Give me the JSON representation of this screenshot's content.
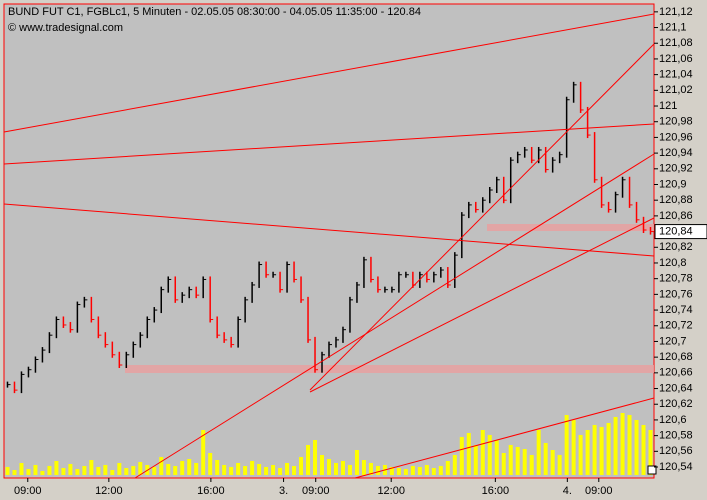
{
  "chart_data": {
    "type": "line",
    "title": "BUND FUT C1, FGBLc1, 5 Minuten - 02.05.05 08:30:00 - 04.05.05 11:35:00 - 120.84",
    "subtitle": "© www.tradesignal.com",
    "values": [
      120.645,
      120.638,
      120.658,
      120.664,
      120.677,
      120.689,
      120.708,
      120.728,
      120.721,
      120.715,
      120.747,
      120.753,
      120.728,
      120.708,
      120.696,
      120.683,
      120.67,
      120.683,
      120.696,
      120.708,
      120.728,
      120.74,
      120.766,
      120.779,
      120.753,
      120.759,
      120.766,
      120.759,
      120.779,
      120.728,
      120.708,
      120.702,
      120.696,
      120.728,
      120.753,
      120.772,
      120.798,
      120.785,
      120.785,
      120.766,
      120.798,
      120.779,
      120.753,
      120.702,
      120.664,
      120.683,
      120.696,
      120.702,
      120.715,
      120.753,
      120.772,
      120.804,
      120.779,
      120.766,
      120.766,
      120.766,
      120.785,
      120.785,
      120.772,
      120.785,
      120.779,
      120.785,
      120.791,
      120.772,
      120.81,
      120.861,
      120.874,
      120.868,
      120.88,
      120.893,
      120.906,
      120.88,
      120.931,
      120.938,
      120.944,
      120.931,
      120.944,
      120.919,
      120.931,
      120.938,
      121.008,
      121.027,
      120.995,
      120.963,
      120.906,
      120.874,
      120.868,
      120.887,
      120.906,
      120.874,
      120.855,
      120.842,
      120.84
    ],
    "volume": [
      8,
      5,
      12,
      6,
      10,
      4,
      9,
      14,
      7,
      11,
      6,
      9,
      15,
      8,
      10,
      5,
      12,
      7,
      9,
      13,
      10,
      8,
      18,
      11,
      9,
      14,
      16,
      12,
      45,
      22,
      15,
      10,
      8,
      12,
      9,
      14,
      11,
      8,
      10,
      7,
      12,
      9,
      18,
      30,
      35,
      20,
      16,
      12,
      14,
      10,
      25,
      15,
      12,
      9,
      10,
      8,
      7,
      6,
      9,
      8,
      10,
      7,
      9,
      14,
      20,
      38,
      42,
      30,
      45,
      40,
      35,
      22,
      30,
      28,
      26,
      20,
      45,
      32,
      25,
      20,
      60,
      55,
      40,
      45,
      50,
      48,
      52,
      58,
      62,
      60,
      55,
      50,
      45
    ],
    "volume_lim": [
      0,
      100
    ],
    "color": "#000000",
    "down_color": "#ff0000",
    "volume_color": "#ffff00",
    "xlim": [
      0,
      93
    ],
    "xticks": [
      {
        "value": 3.4,
        "label": "09:00"
      },
      {
        "value": 15,
        "label": "12:00"
      },
      {
        "value": 29.6,
        "label": "16:00"
      },
      {
        "value": 40,
        "label": "3."
      },
      {
        "value": 44.6,
        "label": "09:00"
      },
      {
        "value": 55.4,
        "label": "12:00"
      },
      {
        "value": 70.3,
        "label": "16:00"
      },
      {
        "value": 80.6,
        "label": "4."
      },
      {
        "value": 85.1,
        "label": "09:00"
      }
    ],
    "ylim": [
      120.526,
      121.13
    ],
    "yticks": [
      {
        "value": 120.54,
        "label": "120,54"
      },
      {
        "value": 120.56,
        "label": "120,56"
      },
      {
        "value": 120.58,
        "label": "120,58"
      },
      {
        "value": 120.6,
        "label": "120,6"
      },
      {
        "value": 120.62,
        "label": "120,62"
      },
      {
        "value": 120.64,
        "label": "120,64"
      },
      {
        "value": 120.66,
        "label": "120,66"
      },
      {
        "value": 120.68,
        "label": "120,68"
      },
      {
        "value": 120.7,
        "label": "120,7"
      },
      {
        "value": 120.72,
        "label": "120,72"
      },
      {
        "value": 120.74,
        "label": "120,74"
      },
      {
        "value": 120.76,
        "label": "120,76"
      },
      {
        "value": 120.78,
        "label": "120,78"
      },
      {
        "value": 120.8,
        "label": "120,8"
      },
      {
        "value": 120.82,
        "label": "120,82"
      },
      {
        "value": 120.86,
        "label": "120,86"
      },
      {
        "value": 120.88,
        "label": "120,88"
      },
      {
        "value": 120.9,
        "label": "120,9"
      },
      {
        "value": 120.92,
        "label": "120,92"
      },
      {
        "value": 120.94,
        "label": "120,94"
      },
      {
        "value": 120.96,
        "label": "120,96"
      },
      {
        "value": 120.98,
        "label": "120,98"
      },
      {
        "value": 121,
        "label": "121"
      },
      {
        "value": 121.02,
        "label": "121,02"
      },
      {
        "value": 121.04,
        "label": "121,04"
      },
      {
        "value": 121.06,
        "label": "121,06"
      },
      {
        "value": 121.08,
        "label": "121,08"
      },
      {
        "value": 121.1,
        "label": "121,1"
      },
      {
        "value": 121.12,
        "label": "121,12"
      }
    ],
    "last_price": {
      "value": 120.84,
      "label": "120,84"
    }
  }
}
